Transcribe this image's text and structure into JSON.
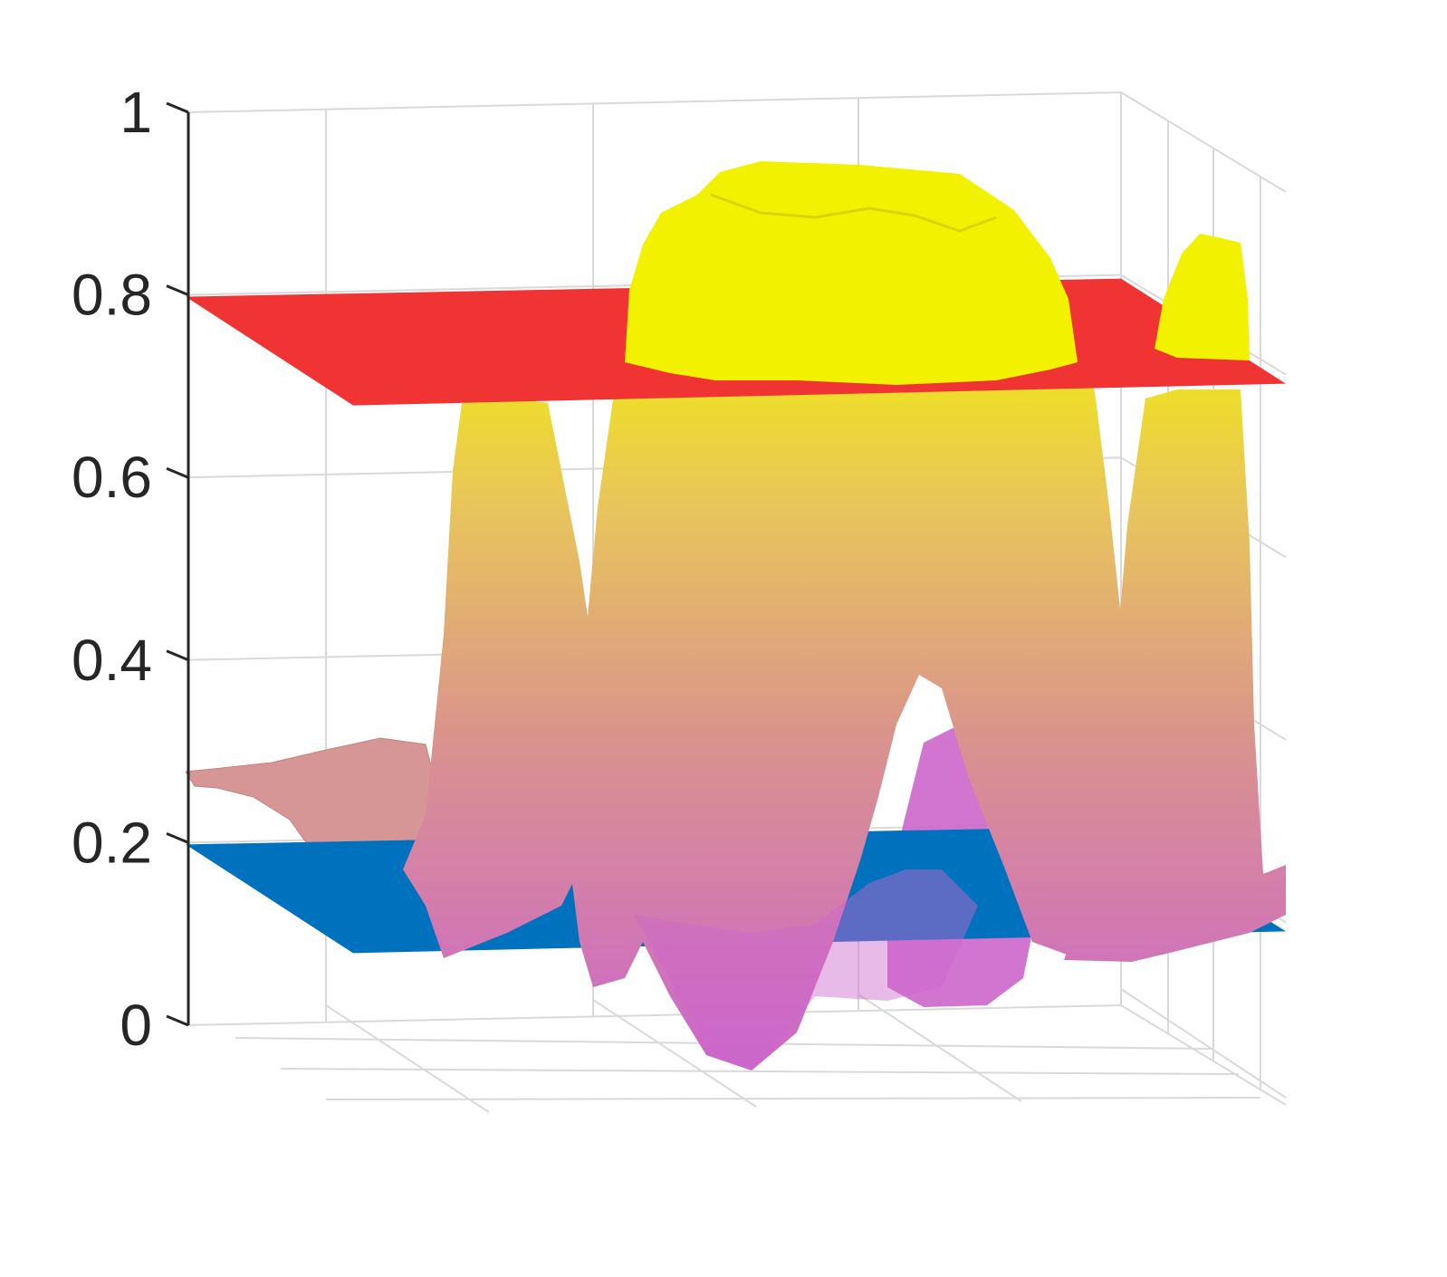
{
  "chart_data": {
    "type": "surface3d",
    "title": "",
    "xlabel": "",
    "ylabel": "",
    "zlabel": "",
    "zlim": [
      0,
      1
    ],
    "z_ticks": [
      {
        "value": 0,
        "label": "0"
      },
      {
        "value": 0.2,
        "label": "0.2"
      },
      {
        "value": 0.4,
        "label": "0.4"
      },
      {
        "value": 0.6,
        "label": "0.6"
      },
      {
        "value": 0.8,
        "label": "0.8"
      },
      {
        "value": 1,
        "label": "1"
      }
    ],
    "grid": true,
    "colormap": "spring-like (magenta at low z to yellow at high z)",
    "threshold_planes": [
      {
        "z": 0.8,
        "color": "#F03333"
      },
      {
        "z": 0.2,
        "color": "#0072BD"
      }
    ],
    "surface_features": [
      {
        "kind": "central plateau peak",
        "max_z": 0.95
      },
      {
        "kind": "left narrow peak",
        "max_z": 0.7
      },
      {
        "kind": "right narrow peak",
        "max_z": 0.88
      },
      {
        "kind": "central dip minimum",
        "min_z": -0.05
      },
      {
        "kind": "left rough shelf",
        "z": 0.28
      }
    ],
    "colors": {
      "surface_low": "#CC66CC",
      "surface_mid": "#D9918F",
      "surface_high": "#F2F200",
      "axis": "#262626",
      "grid": "#D9D9D9"
    }
  }
}
